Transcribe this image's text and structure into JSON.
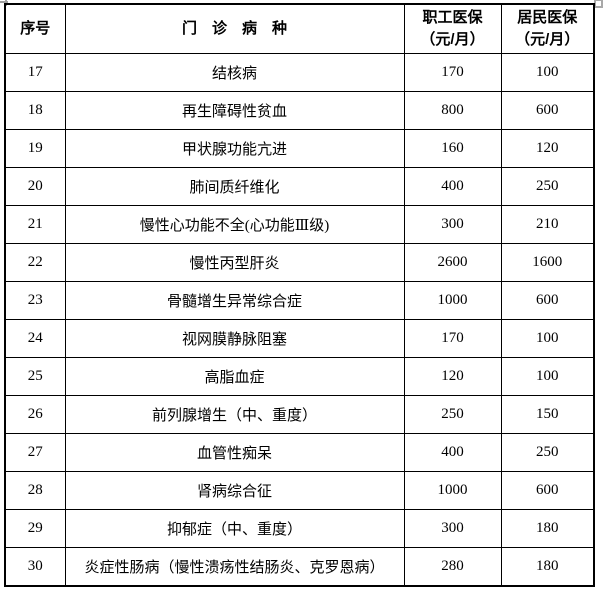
{
  "table": {
    "headers": {
      "serial": "序号",
      "disease": "门　诊　病　种",
      "employee_line1": "职工医保",
      "employee_line2": "（元/月）",
      "resident_line1": "居民医保",
      "resident_line2": "（元/月）"
    },
    "rows": [
      {
        "no": "17",
        "disease": "结核病",
        "employee": "170",
        "resident": "100"
      },
      {
        "no": "18",
        "disease": "再生障碍性贫血",
        "employee": "800",
        "resident": "600"
      },
      {
        "no": "19",
        "disease": "甲状腺功能亢进",
        "employee": "160",
        "resident": "120"
      },
      {
        "no": "20",
        "disease": "肺间质纤维化",
        "employee": "400",
        "resident": "250"
      },
      {
        "no": "21",
        "disease": "慢性心功能不全(心功能Ⅲ级)",
        "employee": "300",
        "resident": "210"
      },
      {
        "no": "22",
        "disease": "慢性丙型肝炎",
        "employee": "2600",
        "resident": "1600"
      },
      {
        "no": "23",
        "disease": "骨髓增生异常综合症",
        "employee": "1000",
        "resident": "600"
      },
      {
        "no": "24",
        "disease": "视网膜静脉阻塞",
        "employee": "170",
        "resident": "100"
      },
      {
        "no": "25",
        "disease": "高脂血症",
        "employee": "120",
        "resident": "100"
      },
      {
        "no": "26",
        "disease": "前列腺增生（中、重度）",
        "employee": "250",
        "resident": "150"
      },
      {
        "no": "27",
        "disease": "血管性痴呆",
        "employee": "400",
        "resident": "250"
      },
      {
        "no": "28",
        "disease": "肾病综合征",
        "employee": "1000",
        "resident": "600"
      },
      {
        "no": "29",
        "disease": "抑郁症（中、重度）",
        "employee": "300",
        "resident": "180"
      },
      {
        "no": "30",
        "disease": "炎症性肠病（慢性溃疡性结肠炎、克罗恩病）",
        "employee": "280",
        "resident": "180"
      }
    ]
  },
  "colors": {
    "border": "#000000",
    "text": "#000000",
    "background": "#ffffff",
    "handle": "#9e9e9e"
  }
}
